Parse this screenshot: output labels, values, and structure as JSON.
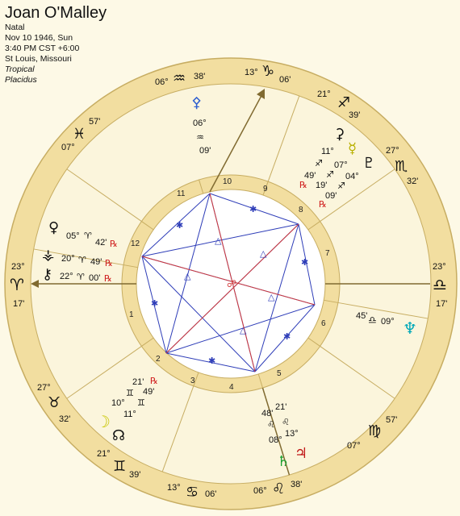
{
  "header": {
    "name": "Joan O'Malley",
    "chart_type": "Natal",
    "date": "Nov 10 1946, Sun",
    "time": "3:40 PM CST +6:00",
    "place": "St Louis, Missouri",
    "zodiac": "Tropical",
    "house_system": "Placidus"
  },
  "colors": {
    "background": "#fdf9e6",
    "outer_ring": "#f2dea0",
    "ring_stroke": "#c7ad62",
    "house_fill": "#fbf5dc",
    "aspect_blue": "#2e3db8",
    "aspect_red": "#d23a3a",
    "retro_red": "#d02020",
    "axis_line": "#806a30"
  },
  "signs": [
    {
      "glyph": "♈",
      "name": "aries",
      "deg": "23°",
      "min": "17'"
    },
    {
      "glyph": "♉",
      "name": "taurus",
      "deg": "27°",
      "min": "32'"
    },
    {
      "glyph": "♊",
      "name": "gemini",
      "deg": "21°",
      "min": "39'"
    },
    {
      "glyph": "♋",
      "name": "cancer",
      "deg": "13°",
      "min": "06'"
    },
    {
      "glyph": "♌",
      "name": "leo",
      "deg": "06°",
      "min": "38'"
    },
    {
      "glyph": "♍",
      "name": "virgo",
      "deg": "07°",
      "min": "57'"
    },
    {
      "glyph": "♎",
      "name": "libra",
      "deg": "23°",
      "min": "17'"
    },
    {
      "glyph": "♏",
      "name": "scorpio",
      "deg": "27°",
      "min": "32'"
    },
    {
      "glyph": "♐",
      "name": "sagittarius",
      "deg": "21°",
      "min": "39'"
    },
    {
      "glyph": "♑",
      "name": "capricorn",
      "deg": "13°",
      "min": "06'"
    },
    {
      "glyph": "♒",
      "name": "aquarius",
      "deg": "06°",
      "min": "38'"
    },
    {
      "glyph": "♓",
      "name": "pisces",
      "deg": "07°",
      "min": "57'"
    }
  ],
  "houses": [
    "1",
    "2",
    "3",
    "4",
    "5",
    "6",
    "7",
    "8",
    "9",
    "10",
    "11",
    "12"
  ],
  "planets": [
    {
      "name": "venus",
      "glyph": "♀",
      "deg": "05°",
      "sign": "♈",
      "min": "42'",
      "retro": "℞"
    },
    {
      "name": "vesta",
      "glyph": "⚶",
      "deg": "20°",
      "sign": "♈",
      "min": "49'",
      "retro": "℞"
    },
    {
      "name": "chiron",
      "glyph": "⚷",
      "deg": "22°",
      "sign": "♈",
      "min": "00'",
      "retro": "℞"
    },
    {
      "name": "pallas",
      "glyph": "⚴",
      "deg": "06°",
      "sign": "♒",
      "min": "09'",
      "retro": ""
    },
    {
      "name": "mercury",
      "glyph": "☿",
      "deg": "11°",
      "sign": "♐",
      "min": "49'",
      "retro": "℞"
    },
    {
      "name": "ceres",
      "glyph": "⚳",
      "deg": "07°",
      "sign": "♐",
      "min": "19'",
      "retro": ""
    },
    {
      "name": "pluto",
      "glyph": "♇",
      "deg": "04°",
      "sign": "♐",
      "min": "09'",
      "retro": "℞"
    },
    {
      "name": "neptune",
      "glyph": "♆",
      "deg": "09°",
      "sign": "♎",
      "min": "45'",
      "retro": ""
    },
    {
      "name": "jupiter",
      "glyph": "♃",
      "deg": "08°",
      "sign": "♌",
      "min": "48'",
      "retro": ""
    },
    {
      "name": "saturn",
      "glyph": "♄",
      "deg": "13°",
      "sign": "♌",
      "min": "21'",
      "retro": ""
    },
    {
      "name": "moon",
      "glyph": "☽",
      "deg": "10°",
      "sign": "♊",
      "min": "21'",
      "retro": "℞"
    },
    {
      "name": "node",
      "glyph": "☊",
      "deg": "11°",
      "sign": "♊",
      "min": "49'",
      "retro": ""
    }
  ],
  "aspect_symbols": {
    "trine": "△",
    "sextile": "✱",
    "opposition": "☍"
  }
}
